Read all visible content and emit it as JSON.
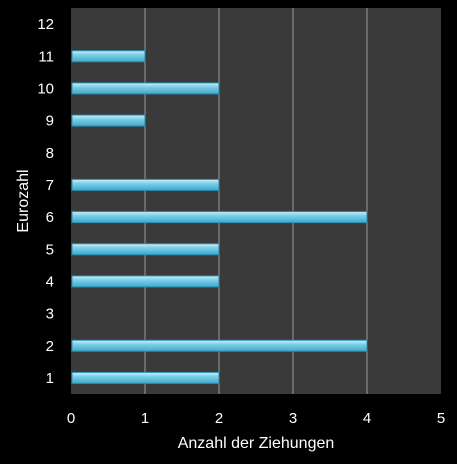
{
  "chart_data": {
    "type": "bar",
    "orientation": "horizontal",
    "categories": [
      "1",
      "2",
      "3",
      "4",
      "5",
      "6",
      "7",
      "8",
      "9",
      "10",
      "11",
      "12"
    ],
    "values": [
      2,
      4,
      0,
      2,
      2,
      4,
      2,
      0,
      1,
      2,
      1,
      0
    ],
    "xlabel": "Anzahl der Ziehungen",
    "ylabel": "Eurozahl",
    "xlim": [
      0,
      5
    ],
    "xticks": [
      "0",
      "1",
      "2",
      "3",
      "4",
      "5"
    ],
    "grid": "vertical",
    "legend": "none",
    "colors": {
      "background": "#000000",
      "plot_area": "#3a3a3a",
      "gridline": "#9a9a9a",
      "bar_fill": "#5bc0de",
      "bar_highlight": "#b8e6f3",
      "bar_edge": "#2a8fb0",
      "text": "#ffffff"
    }
  }
}
